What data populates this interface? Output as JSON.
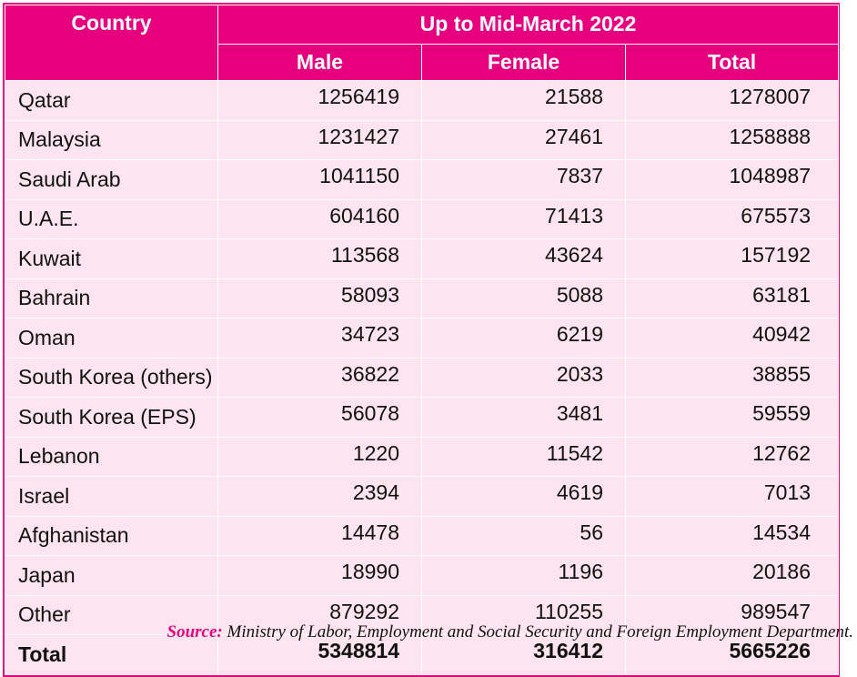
{
  "table": {
    "header": {
      "country": "Country",
      "period": "Up to Mid-March 2022",
      "male": "Male",
      "female": "Female",
      "total": "Total"
    },
    "rows": [
      {
        "country": "Qatar",
        "male": "1256419",
        "female": "21588",
        "total": "1278007"
      },
      {
        "country": "Malaysia",
        "male": "1231427",
        "female": "27461",
        "total": "1258888"
      },
      {
        "country": "Saudi Arab",
        "male": "1041150",
        "female": "7837",
        "total": "1048987"
      },
      {
        "country": "U.A.E.",
        "male": "604160",
        "female": "71413",
        "total": "675573"
      },
      {
        "country": "Kuwait",
        "male": "113568",
        "female": "43624",
        "total": "157192"
      },
      {
        "country": "Bahrain",
        "male": "58093",
        "female": "5088",
        "total": "63181"
      },
      {
        "country": "Oman",
        "male": "34723",
        "female": "6219",
        "total": "40942"
      },
      {
        "country": "South Korea (others)",
        "male": "36822",
        "female": "2033",
        "total": "38855"
      },
      {
        "country": "South Korea (EPS)",
        "male": "56078",
        "female": "3481",
        "total": "59559"
      },
      {
        "country": "Lebanon",
        "male": "1220",
        "female": "11542",
        "total": "12762"
      },
      {
        "country": "Israel",
        "male": "2394",
        "female": "4619",
        "total": "7013"
      },
      {
        "country": "Afghanistan",
        "male": "14478",
        "female": "56",
        "total": "14534"
      },
      {
        "country": "Japan",
        "male": "18990",
        "female": "1196",
        "total": "20186"
      },
      {
        "country": "Other",
        "male": "879292",
        "female": "110255",
        "total": "989547"
      }
    ],
    "total_row": {
      "country": "Total",
      "male": "5348814",
      "female": "316412",
      "total": "5665226"
    }
  },
  "source": {
    "label": "Source:",
    "text": " Ministry of Labor, Employment and Social Security and Foreign Employment Department."
  },
  "colors": {
    "header_bg": "#e6007e",
    "row_bg": "#fde4ef",
    "source_label": "#e6007e"
  }
}
